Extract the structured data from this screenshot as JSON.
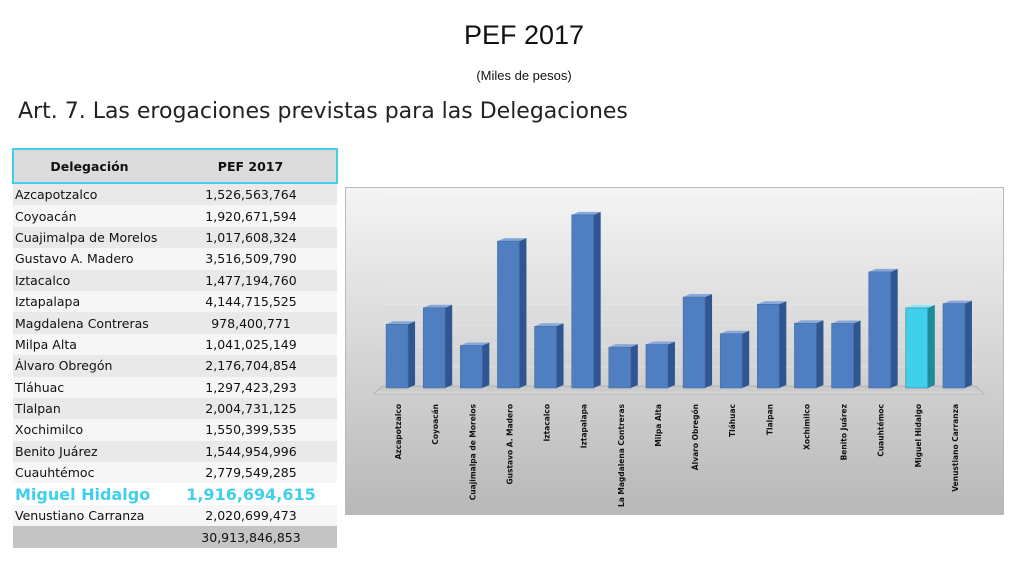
{
  "header": {
    "title": "PEF 2017",
    "subtitle": "(Miles de pesos)",
    "heading": "Art. 7. Las erogaciones previstas para las Delegaciones"
  },
  "table": {
    "columns": [
      "Delegación",
      "PEF 2017"
    ],
    "rows": [
      {
        "name": "Azcapotzalco",
        "value": "1,526,563,764"
      },
      {
        "name": "Coyoacán",
        "value": "1,920,671,594"
      },
      {
        "name": "Cuajimalpa de Morelos",
        "value": "1,017,608,324"
      },
      {
        "name": "Gustavo A. Madero",
        "value": "3,516,509,790"
      },
      {
        "name": "Iztacalco",
        "value": "1,477,194,760"
      },
      {
        "name": "Iztapalapa",
        "value": "4,144,715,525"
      },
      {
        "name": "Magdalena Contreras",
        "value": "978,400,771"
      },
      {
        "name": "Milpa Alta",
        "value": "1,041,025,149"
      },
      {
        "name": "Álvaro Obregón",
        "value": "2,176,704,854"
      },
      {
        "name": "Tláhuac",
        "value": "1,297,423,293"
      },
      {
        "name": "Tlalpan",
        "value": "2,004,731,125"
      },
      {
        "name": "Xochimilco",
        "value": "1,550,399,535"
      },
      {
        "name": "Benito Juárez",
        "value": "1,544,954,996"
      },
      {
        "name": "Cuauhtémoc",
        "value": "2,779,549,285"
      },
      {
        "name": "Miguel Hidalgo",
        "value": "1,916,694,615",
        "highlight": true
      },
      {
        "name": "Venustiano Carranza",
        "value": "2,020,699,473"
      }
    ],
    "total": "30,913,846,853"
  },
  "chart_data": {
    "type": "bar",
    "categories": [
      "Azcapotzalco",
      "Coyoacán",
      "Cuajimalpa de Morelos",
      "Gustavo A. Madero",
      "Iztacalco",
      "Iztapalapa",
      "La Magdalena Contreras",
      "Milpa Alta",
      "Álvaro Obregón",
      "Tláhuac",
      "Tlalpan",
      "Xochimilco",
      "Benito Juárez",
      "Cuauhtémoc",
      "Miguel Hidalgo",
      "Venustiano Carranza"
    ],
    "values": [
      1526563764,
      1920671594,
      1017608324,
      3516509790,
      1477194760,
      4144715525,
      978400771,
      1041025149,
      2176704854,
      1297423293,
      2004731125,
      1550399535,
      1544954996,
      2779549285,
      1916694615,
      2020699473
    ],
    "highlight_index": 14,
    "ylim": [
      0,
      4500000000
    ],
    "grid": true,
    "bar_color": "#4f7fc1",
    "highlight_color": "#3fd0ea",
    "style": "3d-gray-background"
  }
}
